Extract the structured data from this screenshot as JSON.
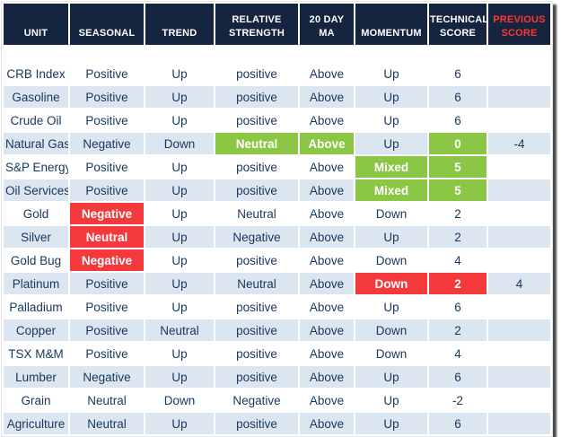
{
  "colors": {
    "header_bg": "#152540",
    "header_text": "#ffffff",
    "previous_score_header_text": "#ff3434",
    "row_alt_bg": "#dce6f1",
    "row_bg": "#ffffff",
    "body_text": "#17375d",
    "highlight_green": "#8cc645",
    "highlight_red": "#f4393c",
    "shadow": "#4b4b4b"
  },
  "chart_data": {
    "type": "table",
    "title": "",
    "columns": [
      {
        "label": "UNIT"
      },
      {
        "label": "SEASONAL"
      },
      {
        "label": "TREND"
      },
      {
        "label": "RELATIVE STRENGTH"
      },
      {
        "label": "20 DAY MA"
      },
      {
        "label": "MOMENTUM"
      },
      {
        "label": "TECHNICAL SCORE"
      },
      {
        "label": "PREVIOUS SCORE"
      }
    ],
    "rows": [
      {
        "cells": [
          {
            "t": "CRB Index"
          },
          {
            "t": "Positive"
          },
          {
            "t": "Up"
          },
          {
            "t": "positive"
          },
          {
            "t": "Above"
          },
          {
            "t": "Up"
          },
          {
            "t": "6"
          },
          {
            "t": ""
          }
        ]
      },
      {
        "cells": [
          {
            "t": "Gasoline"
          },
          {
            "t": "Positive"
          },
          {
            "t": "Up"
          },
          {
            "t": "positive"
          },
          {
            "t": "Above"
          },
          {
            "t": "Up"
          },
          {
            "t": "6"
          },
          {
            "t": ""
          }
        ]
      },
      {
        "cells": [
          {
            "t": "Crude Oil"
          },
          {
            "t": "Positive"
          },
          {
            "t": "Up"
          },
          {
            "t": "positive"
          },
          {
            "t": "Above"
          },
          {
            "t": "Up"
          },
          {
            "t": "6"
          },
          {
            "t": ""
          }
        ]
      },
      {
        "cells": [
          {
            "t": "Natural Gas"
          },
          {
            "t": "Negative"
          },
          {
            "t": "Down"
          },
          {
            "t": "Neutral",
            "hl": "green"
          },
          {
            "t": "Above",
            "hl": "green"
          },
          {
            "t": "Up"
          },
          {
            "t": "0",
            "hl": "green"
          },
          {
            "t": "-4"
          }
        ]
      },
      {
        "cells": [
          {
            "t": "S&P Energy"
          },
          {
            "t": "Positive"
          },
          {
            "t": "Up"
          },
          {
            "t": "positive"
          },
          {
            "t": "Above"
          },
          {
            "t": "Mixed",
            "hl": "green"
          },
          {
            "t": "5",
            "hl": "green"
          },
          {
            "t": ""
          }
        ]
      },
      {
        "cells": [
          {
            "t": "Oil Services"
          },
          {
            "t": "Positive"
          },
          {
            "t": "Up"
          },
          {
            "t": "positive"
          },
          {
            "t": "Above"
          },
          {
            "t": "Mixed",
            "hl": "green"
          },
          {
            "t": "5",
            "hl": "green"
          },
          {
            "t": ""
          }
        ]
      },
      {
        "cells": [
          {
            "t": "Gold"
          },
          {
            "t": "Negative",
            "hl": "red"
          },
          {
            "t": "Up"
          },
          {
            "t": "Neutral"
          },
          {
            "t": "Above"
          },
          {
            "t": "Down"
          },
          {
            "t": "2"
          },
          {
            "t": ""
          }
        ]
      },
      {
        "cells": [
          {
            "t": "Silver"
          },
          {
            "t": "Neutral",
            "hl": "red"
          },
          {
            "t": "Up"
          },
          {
            "t": "Negative"
          },
          {
            "t": "Above"
          },
          {
            "t": "Up"
          },
          {
            "t": "2"
          },
          {
            "t": ""
          }
        ]
      },
      {
        "cells": [
          {
            "t": "Gold Bug"
          },
          {
            "t": "Negative",
            "hl": "red"
          },
          {
            "t": "Up"
          },
          {
            "t": "positive"
          },
          {
            "t": "Above"
          },
          {
            "t": "Down"
          },
          {
            "t": "4"
          },
          {
            "t": ""
          }
        ]
      },
      {
        "cells": [
          {
            "t": "Platinum"
          },
          {
            "t": "Positive"
          },
          {
            "t": "Up"
          },
          {
            "t": "Neutral"
          },
          {
            "t": "Above"
          },
          {
            "t": "Down",
            "hl": "red"
          },
          {
            "t": "2",
            "hl": "red"
          },
          {
            "t": "4"
          }
        ]
      },
      {
        "cells": [
          {
            "t": "Palladium"
          },
          {
            "t": "Positive"
          },
          {
            "t": "Up"
          },
          {
            "t": "positive"
          },
          {
            "t": "Above"
          },
          {
            "t": "Up"
          },
          {
            "t": "6"
          },
          {
            "t": ""
          }
        ]
      },
      {
        "cells": [
          {
            "t": "Copper"
          },
          {
            "t": "Positive"
          },
          {
            "t": "Neutral"
          },
          {
            "t": "positive"
          },
          {
            "t": "Above"
          },
          {
            "t": "Down"
          },
          {
            "t": "2"
          },
          {
            "t": ""
          }
        ]
      },
      {
        "cells": [
          {
            "t": "TSX M&M"
          },
          {
            "t": "Positive"
          },
          {
            "t": "Up"
          },
          {
            "t": "positive"
          },
          {
            "t": "Above"
          },
          {
            "t": "Down"
          },
          {
            "t": "4"
          },
          {
            "t": ""
          }
        ]
      },
      {
        "cells": [
          {
            "t": "Lumber"
          },
          {
            "t": "Negative"
          },
          {
            "t": "Up"
          },
          {
            "t": "positive"
          },
          {
            "t": "Above"
          },
          {
            "t": "Up"
          },
          {
            "t": "6"
          },
          {
            "t": ""
          }
        ]
      },
      {
        "cells": [
          {
            "t": "Grain"
          },
          {
            "t": "Neutral"
          },
          {
            "t": "Down"
          },
          {
            "t": "Negative"
          },
          {
            "t": "Above"
          },
          {
            "t": "Up"
          },
          {
            "t": "-2"
          },
          {
            "t": ""
          }
        ]
      },
      {
        "cells": [
          {
            "t": "Agriculture"
          },
          {
            "t": "Neutral"
          },
          {
            "t": "Up"
          },
          {
            "t": "positive"
          },
          {
            "t": "Above"
          },
          {
            "t": "Up"
          },
          {
            "t": "6"
          },
          {
            "t": ""
          }
        ]
      }
    ]
  }
}
